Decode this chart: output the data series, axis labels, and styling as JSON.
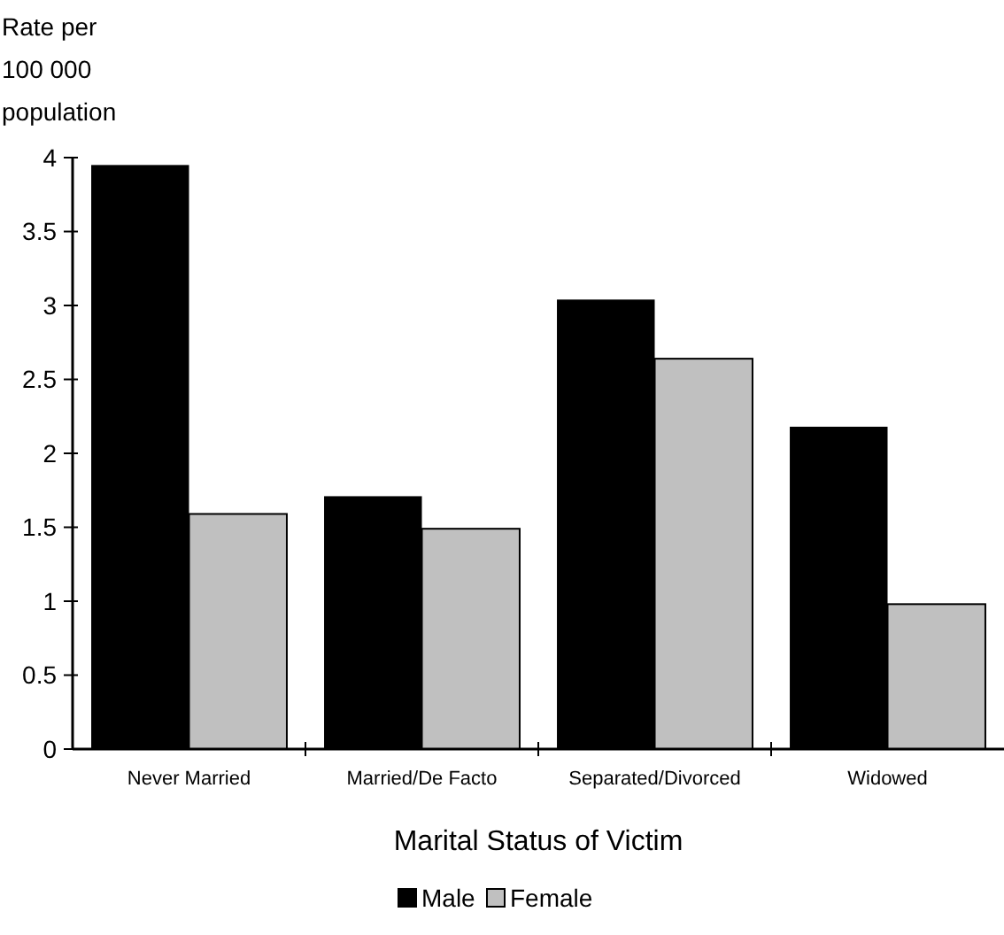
{
  "chart_data": {
    "type": "bar",
    "ylabel": "Rate per 100 000 population",
    "xlabel": "Marital Status of Victim",
    "categories": [
      "Never Married",
      "Married/De Facto",
      "Separated/Divorced",
      "Widowed"
    ],
    "series": [
      {
        "name": "Male",
        "color": "#000000",
        "values": [
          3.95,
          1.71,
          3.04,
          2.18
        ]
      },
      {
        "name": "Female",
        "color": "#c0c0c0",
        "values": [
          1.59,
          1.49,
          2.64,
          0.98
        ]
      }
    ],
    "ylim": [
      0,
      4
    ],
    "yticks": [
      0,
      {
        "value": 0.5,
        "label": "0.5"
      },
      1,
      {
        "value": 1.5,
        "label": "1.5"
      },
      2,
      {
        "value": 2.5,
        "label": "2.5"
      },
      3,
      {
        "value": 3.5,
        "label": "3.5"
      },
      4
    ],
    "grid": false,
    "legend": "bottom"
  }
}
